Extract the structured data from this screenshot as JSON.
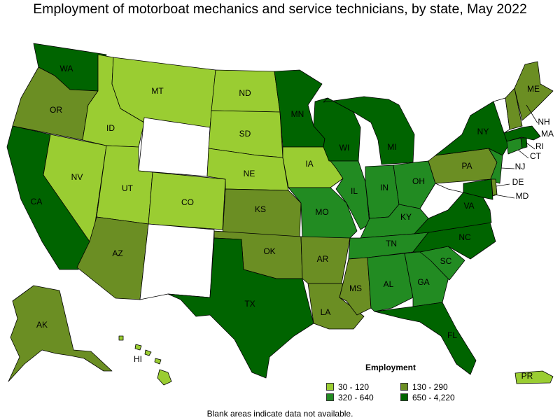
{
  "title": "Employment of motorboat mechanics and service technicians, by state, May 2022",
  "colors": {
    "band1": "#9acd32",
    "band2": "#6b8e23",
    "band3": "#228b22",
    "band4": "#006400",
    "no_data": "#ffffff",
    "border": "#000000"
  },
  "legend": {
    "title": "Employment",
    "items": [
      {
        "label": "30 - 120",
        "band": "band1"
      },
      {
        "label": "130 - 290",
        "band": "band2"
      },
      {
        "label": "320 - 640",
        "band": "band3"
      },
      {
        "label": "650 - 4,220",
        "band": "band4"
      }
    ]
  },
  "footnote": "Blank areas indicate data not available.",
  "states": [
    {
      "abbr": "WA",
      "band": "band4"
    },
    {
      "abbr": "OR",
      "band": "band2"
    },
    {
      "abbr": "CA",
      "band": "band4"
    },
    {
      "abbr": "NV",
      "band": "band1"
    },
    {
      "abbr": "ID",
      "band": "band1"
    },
    {
      "abbr": "MT",
      "band": "band1"
    },
    {
      "abbr": "WY",
      "band": "none"
    },
    {
      "abbr": "UT",
      "band": "band1"
    },
    {
      "abbr": "CO",
      "band": "band1"
    },
    {
      "abbr": "AZ",
      "band": "band2"
    },
    {
      "abbr": "NM",
      "band": "none"
    },
    {
      "abbr": "ND",
      "band": "band1"
    },
    {
      "abbr": "SD",
      "band": "band1"
    },
    {
      "abbr": "NE",
      "band": "band1"
    },
    {
      "abbr": "KS",
      "band": "band2"
    },
    {
      "abbr": "OK",
      "band": "band2"
    },
    {
      "abbr": "TX",
      "band": "band4"
    },
    {
      "abbr": "MN",
      "band": "band4"
    },
    {
      "abbr": "IA",
      "band": "band1"
    },
    {
      "abbr": "MO",
      "band": "band3"
    },
    {
      "abbr": "AR",
      "band": "band2"
    },
    {
      "abbr": "LA",
      "band": "band2"
    },
    {
      "abbr": "WI",
      "band": "band4"
    },
    {
      "abbr": "IL",
      "band": "band3"
    },
    {
      "abbr": "MI",
      "band": "band4"
    },
    {
      "abbr": "IN",
      "band": "band3"
    },
    {
      "abbr": "OH",
      "band": "band3"
    },
    {
      "abbr": "KY",
      "band": "band3"
    },
    {
      "abbr": "TN",
      "band": "band3"
    },
    {
      "abbr": "MS",
      "band": "band2"
    },
    {
      "abbr": "AL",
      "band": "band3"
    },
    {
      "abbr": "GA",
      "band": "band3"
    },
    {
      "abbr": "FL",
      "band": "band4"
    },
    {
      "abbr": "SC",
      "band": "band3"
    },
    {
      "abbr": "NC",
      "band": "band4"
    },
    {
      "abbr": "VA",
      "band": "band4"
    },
    {
      "abbr": "WV",
      "band": "none"
    },
    {
      "abbr": "PA",
      "band": "band2"
    },
    {
      "abbr": "NY",
      "band": "band4"
    },
    {
      "abbr": "VT",
      "band": "none"
    },
    {
      "abbr": "NH",
      "band": "band2"
    },
    {
      "abbr": "ME",
      "band": "band2"
    },
    {
      "abbr": "MA",
      "band": "band4"
    },
    {
      "abbr": "RI",
      "band": "band4"
    },
    {
      "abbr": "CT",
      "band": "band3"
    },
    {
      "abbr": "NJ",
      "band": "band3"
    },
    {
      "abbr": "DE",
      "band": "band2"
    },
    {
      "abbr": "MD",
      "band": "band4"
    },
    {
      "abbr": "AK",
      "band": "band2"
    },
    {
      "abbr": "HI",
      "band": "band1"
    },
    {
      "abbr": "PR",
      "band": "band1"
    }
  ]
}
